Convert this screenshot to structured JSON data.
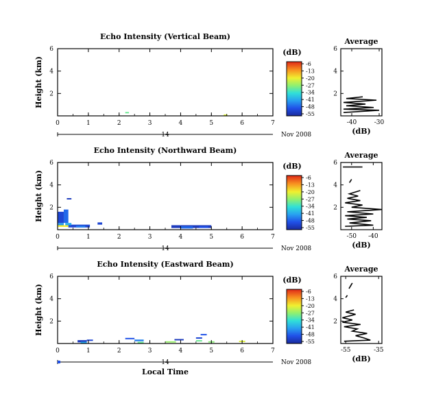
{
  "chart_data": [
    {
      "type": "heatmap",
      "title": "Echo Intensity (Vertical Beam)",
      "ylabel": "Height (km)",
      "xlim": [
        0,
        7
      ],
      "ylim": [
        0,
        6
      ],
      "xticks": [
        0,
        1,
        2,
        3,
        4,
        5,
        6,
        7
      ],
      "yticks": [
        2,
        4,
        6
      ],
      "date_left": "14",
      "date_right": "Nov 2008",
      "colorbar": {
        "title": "(dB)",
        "ticks": [
          "-6",
          "-13",
          "-20",
          "-27",
          "-34",
          "-41",
          "-48",
          "-55"
        ]
      },
      "cells": [
        {
          "x": 2.2,
          "w": 0.12,
          "y": 0.25,
          "h": 0.1,
          "v": -30
        },
        {
          "x": 5.4,
          "w": 0.12,
          "y": 0.05,
          "h": 0.08,
          "v": -22
        }
      ],
      "average": {
        "title": "Average",
        "xlabel": "(dB)",
        "xlim": [
          -44,
          -29
        ],
        "xticks": [
          -40,
          -30
        ],
        "ylim": [
          0,
          6
        ],
        "yticks": [
          2,
          4,
          6
        ],
        "points": [
          [
            -43,
            0.3
          ],
          [
            -30,
            0.5
          ],
          [
            -43,
            0.6
          ],
          [
            -32,
            0.75
          ],
          [
            -42,
            0.9
          ],
          [
            -35,
            1.05
          ],
          [
            -43,
            1.2
          ],
          [
            -31,
            1.4
          ],
          [
            -42,
            1.55
          ],
          [
            -36,
            1.7
          ]
        ]
      }
    },
    {
      "type": "heatmap",
      "title": "Echo Intensity (Northward Beam)",
      "ylabel": "Height (km)",
      "xlim": [
        0,
        7
      ],
      "ylim": [
        0,
        6
      ],
      "xticks": [
        0,
        1,
        2,
        3,
        4,
        5,
        6,
        7
      ],
      "yticks": [
        2,
        4,
        6
      ],
      "date_left": "14",
      "date_right": "Nov 2008",
      "colorbar": {
        "title": "(dB)",
        "ticks": [
          "-6",
          "-13",
          "-20",
          "-27",
          "-34",
          "-41",
          "-48",
          "-55"
        ]
      },
      "cells": [
        {
          "x": 0.0,
          "w": 0.2,
          "y": 0.3,
          "h": 0.3,
          "v": -42
        },
        {
          "x": 0.0,
          "w": 0.35,
          "y": 0.25,
          "h": 0.15,
          "v": -20
        },
        {
          "x": 0.0,
          "w": 0.2,
          "y": 0.6,
          "h": 1.0,
          "v": -50
        },
        {
          "x": 0.2,
          "w": 0.15,
          "y": 0.6,
          "h": 1.2,
          "v": -46
        },
        {
          "x": 0.3,
          "w": 0.15,
          "y": 2.7,
          "h": 0.12,
          "v": -52
        },
        {
          "x": 0.35,
          "w": 0.7,
          "y": 0.2,
          "h": 0.25,
          "v": -50
        },
        {
          "x": 0.6,
          "w": 0.3,
          "y": 0.2,
          "h": 0.15,
          "v": -44
        },
        {
          "x": 1.3,
          "w": 0.15,
          "y": 0.45,
          "h": 0.2,
          "v": -50
        },
        {
          "x": 0.25,
          "w": 0.2,
          "y": 0.4,
          "h": 0.2,
          "v": -40
        },
        {
          "x": 3.7,
          "w": 1.3,
          "y": 0.15,
          "h": 0.25,
          "v": -52
        },
        {
          "x": 4.0,
          "w": 0.4,
          "y": 0.1,
          "h": 0.2,
          "v": -46
        },
        {
          "x": 4.6,
          "w": 0.3,
          "y": 0.15,
          "h": 0.15,
          "v": -48
        }
      ],
      "average": {
        "title": "Average",
        "xlabel": "(dB)",
        "xlim": [
          -55,
          -36
        ],
        "xticks": [
          -50,
          -40
        ],
        "ylim": [
          0,
          6
        ],
        "yticks": [
          2,
          4,
          6
        ],
        "points": [
          [
            -53,
            0.3
          ],
          [
            -40,
            0.4
          ],
          [
            -51,
            0.6
          ],
          [
            -41,
            0.8
          ],
          [
            -52,
            0.95
          ],
          [
            -43,
            1.1
          ],
          [
            -53,
            1.25
          ],
          [
            -40,
            1.4
          ],
          [
            -52,
            1.6
          ],
          [
            -36,
            1.8
          ],
          [
            -50,
            2.0
          ],
          [
            -45,
            2.2
          ],
          [
            -53,
            2.4
          ],
          [
            -46,
            2.6
          ],
          [
            -52,
            2.8
          ],
          [
            -47,
            3.0
          ],
          [
            -51,
            3.2
          ],
          [
            -46,
            3.5
          ]
        ],
        "extra": [
          [
            [
              -51,
              4.2
            ],
            [
              -50,
              4.5
            ]
          ],
          [
            [
              -54,
              5.6
            ],
            [
              -45,
              5.6
            ]
          ]
        ]
      }
    },
    {
      "type": "heatmap",
      "title": "Echo Intensity (Eastward Beam)",
      "ylabel": "Height (km)",
      "xlabel": "Local Time",
      "xlim": [
        0,
        7
      ],
      "ylim": [
        0,
        6
      ],
      "xticks": [
        0,
        1,
        2,
        3,
        4,
        5,
        6,
        7
      ],
      "yticks": [
        2,
        4,
        6
      ],
      "date_left": "14",
      "date_right": "Nov 2008",
      "colorbar": {
        "title": "(dB)",
        "ticks": [
          "-6",
          "-13",
          "-20",
          "-27",
          "-34",
          "-41",
          "-48",
          "-55"
        ]
      },
      "cells": [
        {
          "x": 0.65,
          "w": 0.3,
          "y": 0.1,
          "h": 0.2,
          "v": -52
        },
        {
          "x": 0.95,
          "w": 0.2,
          "y": 0.25,
          "h": 0.1,
          "v": -50
        },
        {
          "x": 0.75,
          "w": 0.2,
          "y": 0.05,
          "h": 0.1,
          "v": -40
        },
        {
          "x": 2.2,
          "w": 0.3,
          "y": 0.4,
          "h": 0.1,
          "v": -48
        },
        {
          "x": 2.5,
          "w": 0.3,
          "y": 0.2,
          "h": 0.15,
          "v": -44
        },
        {
          "x": 2.6,
          "w": 0.2,
          "y": 0.05,
          "h": 0.1,
          "v": -30
        },
        {
          "x": 3.5,
          "w": 0.35,
          "y": 0.1,
          "h": 0.1,
          "v": -27
        },
        {
          "x": 3.8,
          "w": 0.3,
          "y": 0.3,
          "h": 0.1,
          "v": -52
        },
        {
          "x": 4.5,
          "w": 0.2,
          "y": 0.45,
          "h": 0.1,
          "v": -50
        },
        {
          "x": 4.5,
          "w": 0.2,
          "y": 0.2,
          "h": 0.1,
          "v": -30
        },
        {
          "x": 4.9,
          "w": 0.2,
          "y": 0.1,
          "h": 0.1,
          "v": -28
        },
        {
          "x": 4.65,
          "w": 0.2,
          "y": 0.75,
          "h": 0.1,
          "v": -48
        },
        {
          "x": 5.9,
          "w": 0.2,
          "y": 0.15,
          "h": 0.1,
          "v": -22
        }
      ],
      "average": {
        "title": "Average",
        "xlabel": "(dB)",
        "xlim": [
          -58,
          -33
        ],
        "xticks": [
          -55,
          -35
        ],
        "ylim": [
          0,
          6
        ],
        "yticks": [
          2,
          4,
          6
        ],
        "points": [
          [
            -56,
            0.2
          ],
          [
            -40,
            0.3
          ],
          [
            -44,
            0.5
          ],
          [
            -49,
            0.7
          ],
          [
            -42,
            0.9
          ],
          [
            -51,
            1.1
          ],
          [
            -48,
            1.3
          ],
          [
            -56,
            1.5
          ],
          [
            -46,
            1.7
          ],
          [
            -57,
            1.9
          ],
          [
            -51,
            2.1
          ],
          [
            -57,
            2.3
          ],
          [
            -49,
            2.6
          ],
          [
            -55,
            2.8
          ],
          [
            -50,
            3.0
          ]
        ],
        "extra": [
          [
            [
              -55,
              4.1
            ],
            [
              -54,
              4.3
            ]
          ],
          [
            [
              -53,
              4.9
            ],
            [
              -51,
              5.4
            ]
          ]
        ]
      }
    }
  ]
}
